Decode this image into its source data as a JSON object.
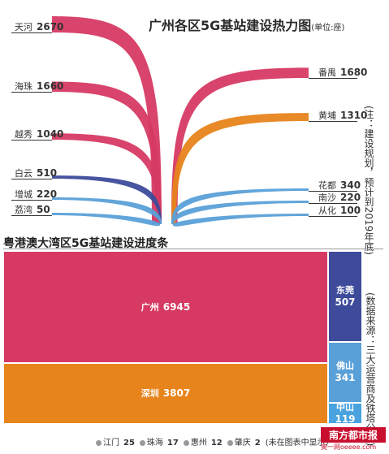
{
  "chart_data": [
    {
      "type": "area",
      "title": "广州各区5G基站建设热力图",
      "unit": "(单位:座)",
      "series": [
        {
          "name": "天河",
          "value": 2670,
          "color": "#d63a63"
        },
        {
          "name": "海珠",
          "value": 1660,
          "color": "#d63a63"
        },
        {
          "name": "越秀",
          "value": 1040,
          "color": "#d63a63"
        },
        {
          "name": "白云",
          "value": 510,
          "color": "#3d4b9a"
        },
        {
          "name": "增城",
          "value": 220,
          "color": "#5aa0d8"
        },
        {
          "name": "荔湾",
          "value": 50,
          "color": "#5aa0d8"
        },
        {
          "name": "番禺",
          "value": 1680,
          "color": "#d63a63"
        },
        {
          "name": "黄埔",
          "value": 1310,
          "color": "#e7841c"
        },
        {
          "name": "花都",
          "value": 340,
          "color": "#5aa0d8"
        },
        {
          "name": "南沙",
          "value": 220,
          "color": "#5aa0d8"
        },
        {
          "name": "从化",
          "value": 100,
          "color": "#5aa0d8"
        }
      ],
      "note": "(注：建设规划，预计到2019年底)"
    },
    {
      "type": "heatmap",
      "title": "粤港澳大湾区5G基站建设进度条",
      "cells": [
        {
          "name": "广州",
          "value": 6945,
          "color": "#d63a63"
        },
        {
          "name": "深圳",
          "value": 3807,
          "color": "#e7841c"
        },
        {
          "name": "东莞",
          "value": 507,
          "color": "#3d4b9a"
        },
        {
          "name": "佛山",
          "value": 341,
          "color": "#5aa0d8"
        },
        {
          "name": "中山",
          "value": 119,
          "color": "#4aa3df"
        }
      ],
      "not_shown": [
        {
          "name": "江门",
          "value": 25
        },
        {
          "name": "珠海",
          "value": 17
        },
        {
          "name": "惠州",
          "value": 12
        },
        {
          "name": "肇庆",
          "value": 2
        }
      ],
      "not_shown_note": "(未在图表中显示)",
      "source": "(数据来源：三大运营商及铁塔公司)"
    }
  ],
  "brand": {
    "logo": "南方都市报",
    "sub": "奥一网oeeee.com"
  }
}
